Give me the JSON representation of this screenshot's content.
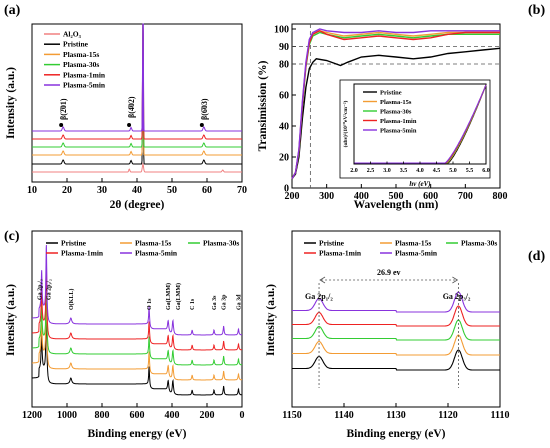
{
  "colors": {
    "Al2O3": "#f08080",
    "Pristine": "#000000",
    "Plasma-15s": "#f39c34",
    "Plasma-30s": "#33cc33",
    "Plasma-1min": "#ee2222",
    "Plasma-5min": "#8833dd"
  },
  "chart_data": [
    {
      "panel": "(a)",
      "type": "line",
      "xlabel": "2θ (degree)",
      "ylabel": "Intensity (a.u.)",
      "xlim": [
        10,
        70
      ],
      "xticks": [
        10,
        20,
        30,
        40,
        50,
        60,
        70
      ],
      "legend": [
        "Al2O3",
        "Pristine",
        "Plasma-15s",
        "Plasma-30s",
        "Plasma-1min",
        "Plasma-5min"
      ],
      "legend_display": [
        "Al₂O₃",
        "Pristine",
        "Plasma-15s",
        "Plasma-30s",
        "Plasma-1min",
        "Plasma-5min"
      ],
      "peaks_2theta": [
        18.9,
        38.3,
        41.7,
        59.1
      ],
      "annotations": [
        {
          "text": "β(2̄01)",
          "x": 18.9
        },
        {
          "text": "β(4̄02)",
          "x": 38.3
        },
        {
          "text": "β(6̄03)",
          "x": 59.1
        }
      ]
    },
    {
      "panel": "(b)",
      "type": "line",
      "xlabel": "Wavelength (nm)",
      "ylabel": "Transimission (%)",
      "xlim": [
        200,
        800
      ],
      "ylim": [
        0,
        100
      ],
      "xticks": [
        200,
        300,
        400,
        500,
        600,
        700,
        800
      ],
      "yticks": [
        0,
        20,
        40,
        60,
        80,
        90,
        100
      ],
      "reference_lines": [
        80,
        90
      ],
      "edge_wavelength": 253,
      "series": [
        {
          "name": "Pristine",
          "x": [
            200,
            210,
            220,
            230,
            240,
            250,
            260,
            270,
            300,
            340,
            360,
            400,
            450,
            500,
            550,
            600,
            650,
            700,
            750,
            800
          ],
          "values": [
            6,
            9,
            20,
            45,
            65,
            77,
            81,
            83,
            82,
            79,
            81,
            84,
            85,
            84,
            83,
            84,
            86,
            87,
            88,
            89
          ]
        },
        {
          "name": "Plasma-15s",
          "x": [
            200,
            210,
            220,
            230,
            240,
            250,
            260,
            280,
            300,
            350,
            400,
            450,
            500,
            550,
            600,
            650,
            700,
            750,
            800
          ],
          "values": [
            6,
            10,
            24,
            55,
            80,
            93,
            98,
            99,
            98,
            96,
            97,
            98,
            97,
            96,
            97,
            98,
            98,
            98,
            98
          ]
        },
        {
          "name": "Plasma-30s",
          "x": [
            200,
            210,
            220,
            230,
            240,
            250,
            260,
            280,
            300,
            350,
            400,
            450,
            500,
            550,
            600,
            650,
            700,
            750,
            800
          ],
          "values": [
            6,
            10,
            23,
            53,
            78,
            91,
            96,
            98,
            97,
            95,
            96,
            97,
            96,
            95,
            96,
            97,
            97,
            97,
            97
          ]
        },
        {
          "name": "Plasma-1min",
          "x": [
            200,
            210,
            220,
            230,
            240,
            250,
            260,
            280,
            300,
            350,
            400,
            450,
            500,
            550,
            600,
            650,
            700,
            750,
            800
          ],
          "values": [
            6,
            10,
            24,
            54,
            79,
            92,
            97,
            99,
            97,
            94,
            95,
            96,
            95,
            94,
            95,
            97,
            98,
            98,
            98
          ]
        },
        {
          "name": "Plasma-5min",
          "x": [
            200,
            210,
            220,
            230,
            240,
            250,
            260,
            280,
            300,
            350,
            400,
            450,
            500,
            550,
            600,
            650,
            700,
            750,
            800
          ],
          "values": [
            6,
            10,
            25,
            56,
            81,
            94,
            98,
            100,
            99,
            98,
            98,
            99,
            98,
            98,
            99,
            99,
            99,
            99,
            99
          ]
        }
      ],
      "inset": {
        "xlabel": "hν (eV)",
        "ylabel": "(αhν)²(10¹⁰eV²cm⁻²)",
        "xlim": [
          2.0,
          6.0
        ],
        "xticks": [
          2.0,
          2.5,
          3.0,
          3.5,
          4.0,
          4.5,
          5.0,
          5.5,
          6.0
        ],
        "legend": [
          "Pristine",
          "Plasma-15s",
          "Plasma-30s",
          "Plasma-1min",
          "Plasma-5min"
        ],
        "onsets_eV": [
          4.85,
          4.82,
          4.8,
          4.78,
          4.76
        ]
      }
    },
    {
      "panel": "(c)",
      "type": "line",
      "xlabel": "Binding energy (eV)",
      "ylabel": "Intensity (a.u.)",
      "xlim": [
        1200,
        0
      ],
      "xticks": [
        1200,
        1000,
        800,
        600,
        400,
        200,
        0
      ],
      "legend": [
        "Pristine",
        "Plasma-15s",
        "Plasma-30s",
        "Plasma-1min",
        "Plasma-5min"
      ],
      "peak_labels": [
        {
          "text": "Ga 2p₁/₂",
          "x": 1145
        },
        {
          "text": "Ga 2p₃/₂",
          "x": 1118
        },
        {
          "text": "O(KLL)",
          "x": 978
        },
        {
          "text": "O 1s",
          "x": 531
        },
        {
          "text": "Ga(LMM)",
          "x": 422
        },
        {
          "text": "Ga(LMM)",
          "x": 395
        },
        {
          "text": "C 1s",
          "x": 285
        },
        {
          "text": "Ga 3s",
          "x": 160
        },
        {
          "text": "Ga 3p",
          "x": 105
        },
        {
          "text": "Ga 3d",
          "x": 20
        }
      ]
    },
    {
      "panel": "(d)",
      "type": "line",
      "xlabel": "Binding energy (eV)",
      "ylabel": "Intensity (a.u.)",
      "xlim": [
        1150,
        1110
      ],
      "xticks": [
        1150,
        1140,
        1130,
        1120,
        1110
      ],
      "legend": [
        "Pristine",
        "Plasma-15s",
        "Plasma-30s",
        "Plasma-1min",
        "Plasma-5min"
      ],
      "peak_labels": [
        {
          "text": "Ga 2p₁/₂",
          "x": 1144.8
        },
        {
          "text": "Ga 2p₃/₂",
          "x": 1118
        }
      ],
      "separation_label": "26.9 ev"
    }
  ]
}
